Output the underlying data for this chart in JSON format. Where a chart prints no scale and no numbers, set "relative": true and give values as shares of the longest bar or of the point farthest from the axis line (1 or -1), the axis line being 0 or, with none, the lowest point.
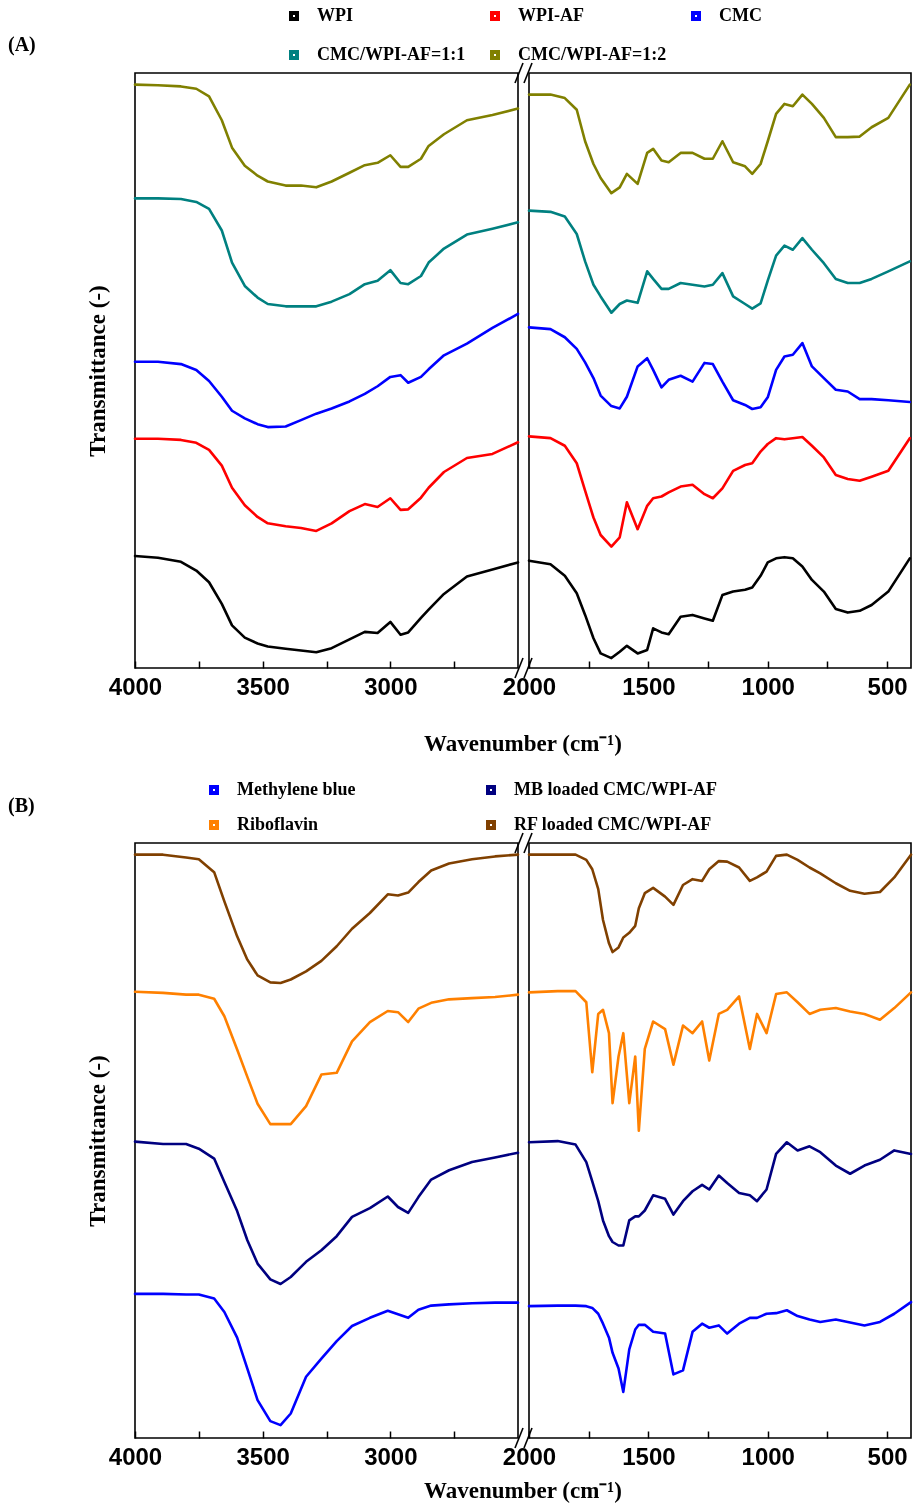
{
  "chart_data": [
    {
      "type": "line",
      "title": "(A)",
      "xlabel": "Wavenumber (cm⁻¹)",
      "ylabel": "Transmittance (-)",
      "relative": true,
      "legend": "top",
      "tick_labels": "x",
      "xlim": [
        4000,
        2500
      ],
      "xticks": [
        4000,
        {
          "value": 3750,
          "label": null
        },
        3500,
        {
          "value": 3250,
          "label": null
        },
        3000,
        {
          "value": 2750,
          "label": null
        }
      ],
      "x": [
        4000,
        3910,
        3820,
        3760,
        3710,
        3660,
        3620,
        3570,
        3520,
        3480,
        3410,
        3350,
        3290,
        3230,
        3160,
        3100,
        3050,
        3000,
        2960,
        2930,
        2880,
        2850,
        2790,
        2700,
        2600,
        2500
      ],
      "series": [
        {
          "name": "WPI",
          "color": "#000000",
          "values": [
            0.192,
            0.189,
            0.182,
            0.167,
            0.147,
            0.11,
            0.073,
            0.052,
            0.042,
            0.037,
            0.033,
            0.03,
            0.027,
            0.034,
            0.049,
            0.062,
            0.06,
            0.079,
            0.057,
            0.061,
            0.086,
            0.1,
            0.127,
            0.157,
            0.169,
            0.181
          ]
        },
        {
          "name": "WPI-AF",
          "color": "#ff0000",
          "values": [
            0.393,
            0.393,
            0.391,
            0.386,
            0.374,
            0.347,
            0.309,
            0.279,
            0.259,
            0.248,
            0.243,
            0.24,
            0.235,
            0.248,
            0.269,
            0.281,
            0.276,
            0.291,
            0.271,
            0.272,
            0.292,
            0.309,
            0.336,
            0.36,
            0.367,
            0.387
          ]
        },
        {
          "name": "CMC",
          "color": "#0000ff",
          "values": [
            0.525,
            0.525,
            0.521,
            0.511,
            0.492,
            0.465,
            0.441,
            0.428,
            0.418,
            0.413,
            0.414,
            0.425,
            0.436,
            0.445,
            0.457,
            0.47,
            0.483,
            0.499,
            0.502,
            0.489,
            0.499,
            0.512,
            0.536,
            0.556,
            0.583,
            0.607
          ]
        },
        {
          "name": "CMC/WPI-AF=1:1",
          "color": "#008080",
          "values": [
            0.805,
            0.805,
            0.804,
            0.799,
            0.787,
            0.75,
            0.695,
            0.655,
            0.635,
            0.624,
            0.62,
            0.62,
            0.62,
            0.628,
            0.641,
            0.658,
            0.664,
            0.682,
            0.66,
            0.658,
            0.672,
            0.695,
            0.719,
            0.743,
            0.753,
            0.764
          ]
        },
        {
          "name": "CMC/WPI-AF=1:2",
          "color": "#808000",
          "values": [
            1.0,
            0.999,
            0.997,
            0.993,
            0.98,
            0.939,
            0.892,
            0.861,
            0.844,
            0.834,
            0.827,
            0.827,
            0.824,
            0.834,
            0.849,
            0.862,
            0.866,
            0.879,
            0.859,
            0.859,
            0.873,
            0.895,
            0.915,
            0.939,
            0.948,
            0.959
          ]
        }
      ]
    },
    {
      "type": "line",
      "relative": true,
      "tick_labels": "x",
      "xlim": [
        2000,
        400
      ],
      "xticks": [
        2000,
        {
          "value": 1750,
          "label": null
        },
        1500,
        {
          "value": 1250,
          "label": null
        },
        1000,
        {
          "value": 750,
          "label": null
        },
        500
      ],
      "x": [
        2000,
        1910,
        1850,
        1800,
        1765,
        1730,
        1700,
        1655,
        1620,
        1590,
        1545,
        1505,
        1480,
        1445,
        1415,
        1365,
        1315,
        1265,
        1230,
        1190,
        1145,
        1095,
        1065,
        1030,
        1000,
        965,
        930,
        895,
        855,
        815,
        765,
        715,
        665,
        615,
        565,
        495,
        405
      ],
      "series": [
        {
          "color": "#000000",
          "values": [
            0.184,
            0.178,
            0.158,
            0.128,
            0.091,
            0.051,
            0.025,
            0.017,
            0.028,
            0.038,
            0.025,
            0.031,
            0.068,
            0.061,
            0.058,
            0.088,
            0.091,
            0.085,
            0.081,
            0.125,
            0.131,
            0.134,
            0.138,
            0.158,
            0.181,
            0.188,
            0.19,
            0.188,
            0.174,
            0.151,
            0.131,
            0.101,
            0.095,
            0.098,
            0.108,
            0.131,
            0.188
          ]
        },
        {
          "color": "#ff0000",
          "values": [
            0.397,
            0.394,
            0.381,
            0.351,
            0.304,
            0.258,
            0.228,
            0.208,
            0.224,
            0.284,
            0.238,
            0.278,
            0.291,
            0.294,
            0.301,
            0.311,
            0.314,
            0.298,
            0.291,
            0.308,
            0.338,
            0.348,
            0.351,
            0.371,
            0.384,
            0.394,
            0.392,
            0.394,
            0.396,
            0.381,
            0.361,
            0.331,
            0.324,
            0.321,
            0.328,
            0.338,
            0.394
          ]
        },
        {
          "color": "#0000ff",
          "values": [
            0.584,
            0.581,
            0.567,
            0.547,
            0.524,
            0.497,
            0.467,
            0.449,
            0.445,
            0.465,
            0.517,
            0.531,
            0.511,
            0.481,
            0.494,
            0.501,
            0.491,
            0.523,
            0.521,
            0.491,
            0.459,
            0.451,
            0.444,
            0.447,
            0.464,
            0.511,
            0.534,
            0.537,
            0.557,
            0.517,
            0.497,
            0.477,
            0.474,
            0.461,
            0.461,
            0.459,
            0.456
          ]
        },
        {
          "color": "#008080",
          "values": [
            0.784,
            0.782,
            0.774,
            0.744,
            0.697,
            0.657,
            0.637,
            0.609,
            0.624,
            0.63,
            0.626,
            0.68,
            0.667,
            0.65,
            0.65,
            0.66,
            0.657,
            0.654,
            0.657,
            0.677,
            0.637,
            0.624,
            0.616,
            0.625,
            0.664,
            0.707,
            0.724,
            0.717,
            0.737,
            0.717,
            0.694,
            0.667,
            0.66,
            0.66,
            0.667,
            0.68,
            0.697
          ]
        },
        {
          "color": "#808000",
          "values": [
            0.983,
            0.983,
            0.977,
            0.957,
            0.903,
            0.864,
            0.84,
            0.814,
            0.824,
            0.847,
            0.83,
            0.883,
            0.89,
            0.87,
            0.867,
            0.883,
            0.883,
            0.873,
            0.873,
            0.903,
            0.867,
            0.86,
            0.847,
            0.864,
            0.903,
            0.95,
            0.967,
            0.963,
            0.983,
            0.967,
            0.943,
            0.91,
            0.91,
            0.911,
            0.927,
            0.943,
            1.0
          ]
        }
      ]
    },
    {
      "type": "line",
      "title": "(B)",
      "xlabel": "Wavenumber (cm⁻¹)",
      "ylabel": "Transmittance (-)",
      "relative": true,
      "legend": "top",
      "tick_labels": "x",
      "xlim": [
        4000,
        2500
      ],
      "xticks": [
        4000,
        {
          "value": 3750,
          "label": null
        },
        3500,
        {
          "value": 3250,
          "label": null
        },
        3000,
        {
          "value": 2750,
          "label": null
        }
      ],
      "x": [
        4000,
        3890,
        3800,
        3750,
        3690,
        3650,
        3600,
        3560,
        3520,
        3470,
        3430,
        3390,
        3330,
        3270,
        3210,
        3150,
        3080,
        3010,
        2970,
        2930,
        2890,
        2840,
        2770,
        2680,
        2590,
        2500
      ],
      "series": [
        {
          "name": "Methylene blue",
          "color": "#0000ff",
          "values": [
            0.247,
            0.247,
            0.246,
            0.246,
            0.239,
            0.216,
            0.172,
            0.119,
            0.065,
            0.029,
            0.022,
            0.042,
            0.105,
            0.136,
            0.166,
            0.192,
            0.206,
            0.218,
            0.212,
            0.206,
            0.22,
            0.227,
            0.229,
            0.231,
            0.232,
            0.232
          ]
        },
        {
          "name": "MB loaded CMC/WPI-AF",
          "color": "#000080",
          "values": [
            0.508,
            0.504,
            0.504,
            0.496,
            0.479,
            0.439,
            0.389,
            0.339,
            0.299,
            0.272,
            0.264,
            0.276,
            0.302,
            0.322,
            0.346,
            0.379,
            0.394,
            0.414,
            0.396,
            0.386,
            0.413,
            0.443,
            0.459,
            0.473,
            0.481,
            0.489
          ]
        },
        {
          "name": "Riboflavin",
          "color": "#ff8000",
          "values": [
            0.765,
            0.763,
            0.76,
            0.76,
            0.753,
            0.723,
            0.666,
            0.619,
            0.573,
            0.538,
            0.538,
            0.538,
            0.569,
            0.623,
            0.626,
            0.68,
            0.713,
            0.732,
            0.73,
            0.713,
            0.736,
            0.746,
            0.752,
            0.754,
            0.756,
            0.76
          ]
        },
        {
          "name": "RF loaded CMC/WPI-AF",
          "color": "#804000",
          "values": [
            1.0,
            1.0,
            0.995,
            0.992,
            0.97,
            0.92,
            0.86,
            0.82,
            0.793,
            0.781,
            0.78,
            0.786,
            0.8,
            0.818,
            0.843,
            0.873,
            0.9,
            0.932,
            0.93,
            0.935,
            0.953,
            0.973,
            0.985,
            0.992,
            0.997,
            1.0
          ]
        }
      ]
    },
    {
      "type": "line",
      "relative": true,
      "tick_labels": "x",
      "xlim": [
        2000,
        400
      ],
      "xticks": [
        2000,
        {
          "value": 1750,
          "label": null
        },
        1500,
        {
          "value": 1250,
          "label": null
        },
        1000,
        {
          "value": 750,
          "label": null
        },
        500
      ],
      "x": [
        2000,
        1880,
        1805,
        1760,
        1735,
        1710,
        1690,
        1665,
        1650,
        1625,
        1605,
        1580,
        1555,
        1540,
        1515,
        1480,
        1430,
        1395,
        1355,
        1315,
        1275,
        1245,
        1205,
        1170,
        1120,
        1075,
        1045,
        1005,
        965,
        920,
        875,
        825,
        780,
        715,
        655,
        595,
        530,
        470,
        400
      ],
      "series": [
        {
          "color": "#0000ff",
          "values": [
            0.226,
            0.227,
            0.227,
            0.226,
            0.223,
            0.213,
            0.196,
            0.172,
            0.146,
            0.119,
            0.079,
            0.152,
            0.186,
            0.194,
            0.194,
            0.182,
            0.179,
            0.109,
            0.116,
            0.182,
            0.196,
            0.189,
            0.193,
            0.179,
            0.196,
            0.206,
            0.206,
            0.213,
            0.214,
            0.219,
            0.209,
            0.203,
            0.199,
            0.203,
            0.198,
            0.193,
            0.199,
            0.213,
            0.233
          ]
        },
        {
          "color": "#000080",
          "values": [
            0.507,
            0.509,
            0.503,
            0.473,
            0.44,
            0.406,
            0.373,
            0.346,
            0.336,
            0.33,
            0.33,
            0.373,
            0.38,
            0.38,
            0.39,
            0.416,
            0.41,
            0.383,
            0.406,
            0.423,
            0.434,
            0.426,
            0.45,
            0.437,
            0.42,
            0.416,
            0.406,
            0.426,
            0.487,
            0.507,
            0.493,
            0.5,
            0.49,
            0.467,
            0.453,
            0.467,
            0.477,
            0.493,
            0.487
          ]
        },
        {
          "color": "#ff8000",
          "values": [
            0.764,
            0.766,
            0.766,
            0.747,
            0.627,
            0.727,
            0.734,
            0.694,
            0.574,
            0.654,
            0.694,
            0.574,
            0.654,
            0.527,
            0.667,
            0.714,
            0.701,
            0.64,
            0.707,
            0.694,
            0.714,
            0.647,
            0.727,
            0.734,
            0.757,
            0.667,
            0.727,
            0.694,
            0.761,
            0.764,
            0.747,
            0.727,
            0.734,
            0.737,
            0.731,
            0.727,
            0.717,
            0.737,
            0.764
          ]
        },
        {
          "color": "#804000",
          "values": [
            1.0,
            1.0,
            1.0,
            0.991,
            0.975,
            0.941,
            0.888,
            0.848,
            0.833,
            0.841,
            0.858,
            0.866,
            0.878,
            0.908,
            0.934,
            0.943,
            0.928,
            0.914,
            0.948,
            0.958,
            0.955,
            0.975,
            0.989,
            0.988,
            0.978,
            0.955,
            0.961,
            0.971,
            0.998,
            1.0,
            0.991,
            0.978,
            0.968,
            0.951,
            0.938,
            0.933,
            0.936,
            0.961,
            1.0
          ]
        }
      ]
    }
  ]
}
